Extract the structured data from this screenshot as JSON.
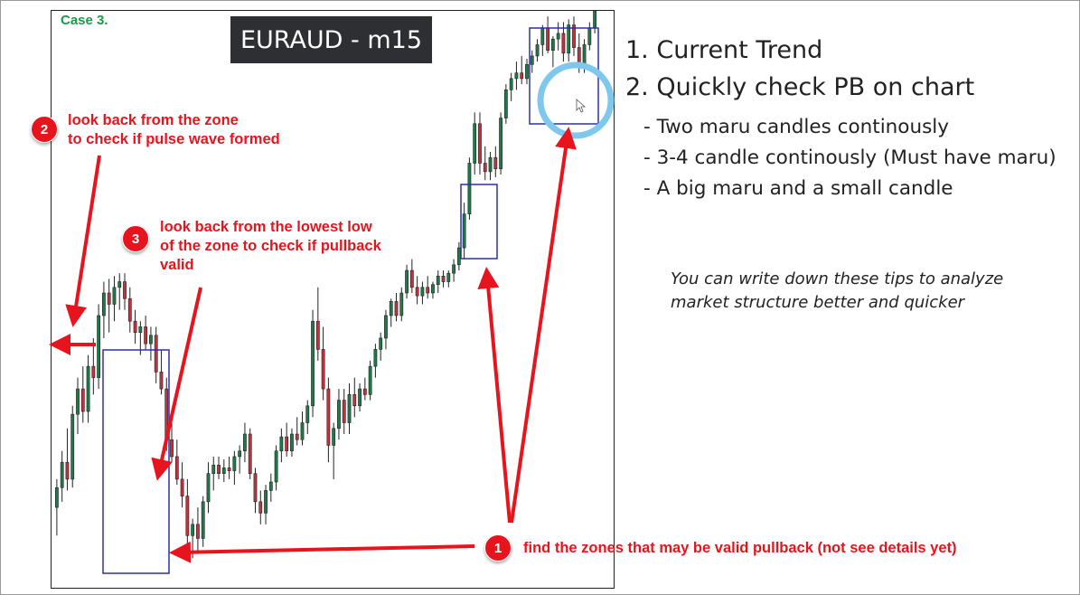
{
  "case_label": "Case 3.",
  "pair_title": "EURAUD - m15",
  "notes": {
    "n1_badge": "1",
    "n1_text": "find the zones that may be valid pullback (not see details yet)",
    "n2_badge": "2",
    "n2_line1": "look back from the zone",
    "n2_line2": "to check if pulse wave formed",
    "n3_badge": "3",
    "n3_line1": "look back from the lowest low",
    "n3_line2": "of the zone to check if pullback",
    "n3_line3": "valid"
  },
  "rules": {
    "r1": "1. Current Trend",
    "r2": "2. Quickly check  PB on chart",
    "s1": "- Two maru candles continously",
    "s2": "- 3-4 candle continously (Must have maru)",
    "s3": "- A big maru and a small candle"
  },
  "tip": {
    "line1": "You can write down these tips to analyze",
    "line2": "market structure better and quicker"
  },
  "colors": {
    "bull": "#1f7a4a",
    "bear": "#c0333d",
    "zone_box": "#2b2fb0",
    "annotation_red": "#e8141d",
    "highlight_circle": "#7ec8ee",
    "case_green": "#1a9a4a"
  },
  "chart_data": {
    "type": "candlestick",
    "title": "EURAUD - m15",
    "xlabel": "",
    "ylabel": "",
    "ylim": [
      0,
      100
    ],
    "grid": false,
    "candles": [
      {
        "o": 12.0,
        "h": 17.0,
        "l": 7.0,
        "c": 15.5
      },
      {
        "o": 15.5,
        "h": 22.0,
        "l": 13.0,
        "c": 20.0
      },
      {
        "o": 20.0,
        "h": 26.0,
        "l": 15.0,
        "c": 17.0
      },
      {
        "o": 17.0,
        "h": 30.0,
        "l": 15.5,
        "c": 28.5
      },
      {
        "o": 28.5,
        "h": 35.0,
        "l": 25.0,
        "c": 33.0
      },
      {
        "o": 33.0,
        "h": 37.0,
        "l": 27.0,
        "c": 29.0
      },
      {
        "o": 29.0,
        "h": 39.0,
        "l": 27.0,
        "c": 37.0
      },
      {
        "o": 37.0,
        "h": 42.0,
        "l": 32.0,
        "c": 35.0
      },
      {
        "o": 35.0,
        "h": 48.0,
        "l": 33.0,
        "c": 46.0
      },
      {
        "o": 46.0,
        "h": 52.0,
        "l": 42.0,
        "c": 50.0
      },
      {
        "o": 50.0,
        "h": 52.5,
        "l": 43.0,
        "c": 48.0
      },
      {
        "o": 48.0,
        "h": 53.0,
        "l": 45.0,
        "c": 51.0
      },
      {
        "o": 51.0,
        "h": 53.5,
        "l": 47.0,
        "c": 52.0
      },
      {
        "o": 52.0,
        "h": 53.5,
        "l": 47.0,
        "c": 49.0
      },
      {
        "o": 49.0,
        "h": 51.0,
        "l": 43.0,
        "c": 45.0
      },
      {
        "o": 45.0,
        "h": 47.0,
        "l": 41.0,
        "c": 43.0
      },
      {
        "o": 43.0,
        "h": 45.0,
        "l": 39.0,
        "c": 44.0
      },
      {
        "o": 44.0,
        "h": 46.0,
        "l": 40.0,
        "c": 41.0
      },
      {
        "o": 41.0,
        "h": 44.0,
        "l": 38.0,
        "c": 42.5
      },
      {
        "o": 42.5,
        "h": 44.0,
        "l": 34.0,
        "c": 36.0
      },
      {
        "o": 36.0,
        "h": 40.0,
        "l": 32.0,
        "c": 33.0
      },
      {
        "o": 33.0,
        "h": 35.0,
        "l": 22.0,
        "c": 24.0
      },
      {
        "o": 24.0,
        "h": 27.0,
        "l": 20.0,
        "c": 21.0
      },
      {
        "o": 21.0,
        "h": 24.0,
        "l": 16.0,
        "c": 17.0
      },
      {
        "o": 17.0,
        "h": 20.0,
        "l": 12.0,
        "c": 14.0
      },
      {
        "o": 14.0,
        "h": 17.0,
        "l": 5.0,
        "c": 7.0
      },
      {
        "o": 7.0,
        "h": 10.0,
        "l": 3.0,
        "c": 9.0
      },
      {
        "o": 9.0,
        "h": 12.0,
        "l": 4.0,
        "c": 6.5
      },
      {
        "o": 6.5,
        "h": 14.0,
        "l": 5.0,
        "c": 13.0
      },
      {
        "o": 13.0,
        "h": 20.0,
        "l": 11.0,
        "c": 18.0
      },
      {
        "o": 18.0,
        "h": 21.0,
        "l": 15.0,
        "c": 19.5
      },
      {
        "o": 19.5,
        "h": 21.0,
        "l": 17.0,
        "c": 18.0
      },
      {
        "o": 18.0,
        "h": 20.5,
        "l": 16.5,
        "c": 19.0
      },
      {
        "o": 19.0,
        "h": 21.0,
        "l": 17.0,
        "c": 18.5
      },
      {
        "o": 18.5,
        "h": 22.0,
        "l": 16.0,
        "c": 21.0
      },
      {
        "o": 21.0,
        "h": 23.0,
        "l": 18.0,
        "c": 22.0
      },
      {
        "o": 22.0,
        "h": 27.0,
        "l": 20.0,
        "c": 25.0
      },
      {
        "o": 25.0,
        "h": 26.0,
        "l": 17.0,
        "c": 18.0
      },
      {
        "o": 18.0,
        "h": 19.0,
        "l": 11.0,
        "c": 13.0
      },
      {
        "o": 13.0,
        "h": 15.0,
        "l": 9.0,
        "c": 11.0
      },
      {
        "o": 11.0,
        "h": 16.0,
        "l": 9.0,
        "c": 15.0
      },
      {
        "o": 15.0,
        "h": 18.0,
        "l": 13.0,
        "c": 16.5
      },
      {
        "o": 16.5,
        "h": 23.0,
        "l": 15.0,
        "c": 22.0
      },
      {
        "o": 22.0,
        "h": 26.0,
        "l": 20.0,
        "c": 24.5
      },
      {
        "o": 24.5,
        "h": 27.0,
        "l": 21.0,
        "c": 22.0
      },
      {
        "o": 22.0,
        "h": 26.0,
        "l": 21.0,
        "c": 25.0
      },
      {
        "o": 25.0,
        "h": 28.0,
        "l": 23.0,
        "c": 24.0
      },
      {
        "o": 24.0,
        "h": 29.0,
        "l": 23.0,
        "c": 27.0
      },
      {
        "o": 27.0,
        "h": 31.0,
        "l": 25.0,
        "c": 30.0
      },
      {
        "o": 30.0,
        "h": 47.0,
        "l": 28.0,
        "c": 45.0
      },
      {
        "o": 45.0,
        "h": 51.0,
        "l": 38.0,
        "c": 40.0
      },
      {
        "o": 40.0,
        "h": 44.0,
        "l": 31.0,
        "c": 33.0
      },
      {
        "o": 33.0,
        "h": 35.0,
        "l": 20.0,
        "c": 23.0
      },
      {
        "o": 23.0,
        "h": 27.0,
        "l": 17.0,
        "c": 26.0
      },
      {
        "o": 26.0,
        "h": 33.0,
        "l": 24.0,
        "c": 31.0
      },
      {
        "o": 31.0,
        "h": 33.0,
        "l": 25.0,
        "c": 27.0
      },
      {
        "o": 27.0,
        "h": 34.0,
        "l": 25.0,
        "c": 32.0
      },
      {
        "o": 32.0,
        "h": 35.0,
        "l": 28.0,
        "c": 30.0
      },
      {
        "o": 30.0,
        "h": 34.0,
        "l": 29.0,
        "c": 33.0
      },
      {
        "o": 33.0,
        "h": 35.0,
        "l": 31.0,
        "c": 32.0
      },
      {
        "o": 32.0,
        "h": 38.0,
        "l": 31.0,
        "c": 37.0
      },
      {
        "o": 37.0,
        "h": 41.0,
        "l": 35.0,
        "c": 40.0
      },
      {
        "o": 40.0,
        "h": 43.0,
        "l": 38.0,
        "c": 42.0
      },
      {
        "o": 42.0,
        "h": 47.0,
        "l": 40.0,
        "c": 46.0
      },
      {
        "o": 46.0,
        "h": 49.0,
        "l": 44.0,
        "c": 48.5
      },
      {
        "o": 48.5,
        "h": 50.0,
        "l": 45.0,
        "c": 46.0
      },
      {
        "o": 46.0,
        "h": 51.0,
        "l": 45.0,
        "c": 50.0
      },
      {
        "o": 50.0,
        "h": 55.0,
        "l": 49.0,
        "c": 54.0
      },
      {
        "o": 54.0,
        "h": 56.0,
        "l": 50.0,
        "c": 51.0
      },
      {
        "o": 51.0,
        "h": 53.0,
        "l": 48.0,
        "c": 49.5
      },
      {
        "o": 49.5,
        "h": 52.0,
        "l": 48.0,
        "c": 51.0
      },
      {
        "o": 51.0,
        "h": 53.0,
        "l": 49.0,
        "c": 50.0
      },
      {
        "o": 50.0,
        "h": 52.0,
        "l": 49.0,
        "c": 51.5
      },
      {
        "o": 51.5,
        "h": 54.0,
        "l": 50.0,
        "c": 53.0
      },
      {
        "o": 53.0,
        "h": 54.0,
        "l": 51.0,
        "c": 52.0
      },
      {
        "o": 52.0,
        "h": 54.0,
        "l": 51.0,
        "c": 53.5
      },
      {
        "o": 53.5,
        "h": 56.0,
        "l": 52.0,
        "c": 55.0
      },
      {
        "o": 55.0,
        "h": 59.0,
        "l": 54.0,
        "c": 58.0
      },
      {
        "o": 58.0,
        "h": 66.0,
        "l": 56.0,
        "c": 64.0
      },
      {
        "o": 64.0,
        "h": 74.0,
        "l": 63.0,
        "c": 73.0
      },
      {
        "o": 73.0,
        "h": 82.0,
        "l": 71.0,
        "c": 80.0
      },
      {
        "o": 80.0,
        "h": 82.0,
        "l": 71.0,
        "c": 73.0
      },
      {
        "o": 73.0,
        "h": 76.0,
        "l": 70.0,
        "c": 71.5
      },
      {
        "o": 71.5,
        "h": 75.0,
        "l": 70.0,
        "c": 74.0
      },
      {
        "o": 74.0,
        "h": 76.0,
        "l": 70.5,
        "c": 72.0
      },
      {
        "o": 72.0,
        "h": 82.0,
        "l": 71.0,
        "c": 81.0
      },
      {
        "o": 81.0,
        "h": 87.0,
        "l": 80.0,
        "c": 86.0
      },
      {
        "o": 86.0,
        "h": 89.0,
        "l": 84.0,
        "c": 88.0
      },
      {
        "o": 88.0,
        "h": 91.0,
        "l": 86.0,
        "c": 89.0
      },
      {
        "o": 89.0,
        "h": 92.0,
        "l": 87.0,
        "c": 88.0
      },
      {
        "o": 88.0,
        "h": 91.5,
        "l": 87.0,
        "c": 90.5
      },
      {
        "o": 90.5,
        "h": 93.0,
        "l": 89.0,
        "c": 92.0
      },
      {
        "o": 92.0,
        "h": 95.0,
        "l": 91.0,
        "c": 94.0
      },
      {
        "o": 94.0,
        "h": 97.5,
        "l": 92.0,
        "c": 97.0
      },
      {
        "o": 97.0,
        "h": 99.0,
        "l": 92.5,
        "c": 93.0
      },
      {
        "o": 93.0,
        "h": 95.5,
        "l": 90.0,
        "c": 95.0
      },
      {
        "o": 95.0,
        "h": 98.0,
        "l": 93.0,
        "c": 96.0
      },
      {
        "o": 96.0,
        "h": 98.0,
        "l": 91.0,
        "c": 92.5
      },
      {
        "o": 92.5,
        "h": 98.5,
        "l": 91.0,
        "c": 97.5
      },
      {
        "o": 97.5,
        "h": 99.0,
        "l": 92.0,
        "c": 93.5
      },
      {
        "o": 93.5,
        "h": 96.0,
        "l": 89.0,
        "c": 90.0
      },
      {
        "o": 90.0,
        "h": 95.0,
        "l": 89.0,
        "c": 94.0
      },
      {
        "o": 94.0,
        "h": 98.0,
        "l": 93.0,
        "c": 97.0
      },
      {
        "o": 97.0,
        "h": 104.0,
        "l": 96.0,
        "c": 103.0
      }
    ],
    "zones_marked": 3,
    "annotations": [
      "find the zones that may be valid pullback (not see details yet)",
      "look back from the zone to check if pulse wave formed",
      "look back from the lowest low of the zone to check if pullback valid"
    ]
  }
}
